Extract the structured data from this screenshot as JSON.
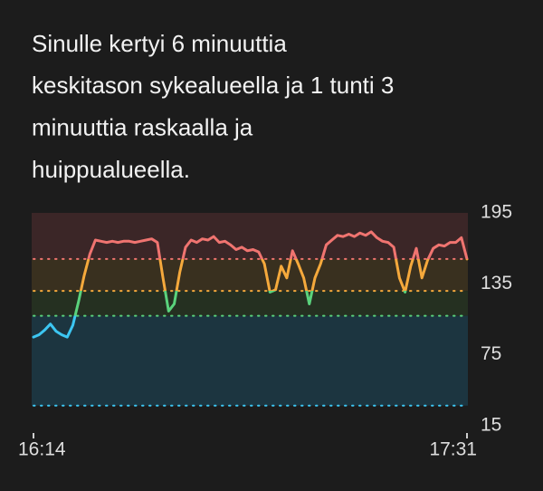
{
  "chart_data": {
    "type": "line",
    "title": [
      "Sinulle kertyi 6 minuuttia",
      "keskitason sykealueella ja 1 tunti 3",
      "minuuttia raskaalla ja",
      "huippualueella."
    ],
    "x": [
      "16:14",
      "16:15",
      "16:16",
      "16:17",
      "16:18",
      "16:19",
      "16:20",
      "16:21",
      "16:22",
      "16:23",
      "16:24",
      "16:25",
      "16:26",
      "16:27",
      "16:28",
      "16:29",
      "16:30",
      "16:31",
      "16:32",
      "16:33",
      "16:34",
      "16:35",
      "16:36",
      "16:37",
      "16:38",
      "16:39",
      "16:40",
      "16:41",
      "16:42",
      "16:43",
      "16:44",
      "16:45",
      "16:46",
      "16:47",
      "16:48",
      "16:49",
      "16:50",
      "16:51",
      "16:52",
      "16:53",
      "16:54",
      "16:55",
      "16:56",
      "16:57",
      "16:58",
      "16:59",
      "17:00",
      "17:01",
      "17:02",
      "17:03",
      "17:04",
      "17:05",
      "17:06",
      "17:07",
      "17:08",
      "17:09",
      "17:10",
      "17:11",
      "17:12",
      "17:13",
      "17:14",
      "17:15",
      "17:16",
      "17:17",
      "17:18",
      "17:19",
      "17:20",
      "17:21",
      "17:22",
      "17:23",
      "17:24",
      "17:25",
      "17:26",
      "17:27",
      "17:28",
      "17:29",
      "17:30",
      "17:31"
    ],
    "values": [
      90,
      92,
      96,
      101,
      95,
      92,
      90,
      100,
      120,
      142,
      160,
      172,
      171,
      170,
      171,
      170,
      171,
      171,
      170,
      171,
      172,
      173,
      170,
      140,
      112,
      118,
      145,
      166,
      172,
      170,
      173,
      172,
      175,
      170,
      171,
      168,
      164,
      166,
      163,
      164,
      162,
      152,
      128,
      130,
      150,
      140,
      163,
      152,
      140,
      118,
      140,
      152,
      168,
      172,
      176,
      175,
      177,
      175,
      178,
      176,
      179,
      174,
      171,
      170,
      166,
      140,
      128,
      150,
      165,
      140,
      155,
      165,
      168,
      167,
      170,
      170,
      174,
      156
    ],
    "zones": [
      {
        "min": 156,
        "max": 195,
        "color": "#f07470",
        "fill": "#3b2627"
      },
      {
        "min": 129,
        "max": 156,
        "color": "#f5a93c",
        "fill": "#39301f"
      },
      {
        "min": 108,
        "max": 129,
        "color": "#5ad27c",
        "fill": "#253021"
      },
      {
        "min": 32,
        "max": 108,
        "color": "#3cc6f2",
        "fill": "#1c3540"
      }
    ],
    "ylim": [
      15,
      195
    ],
    "yticks": [
      15,
      75,
      135,
      195
    ],
    "xticks": [
      "16:14",
      "17:31"
    ]
  }
}
